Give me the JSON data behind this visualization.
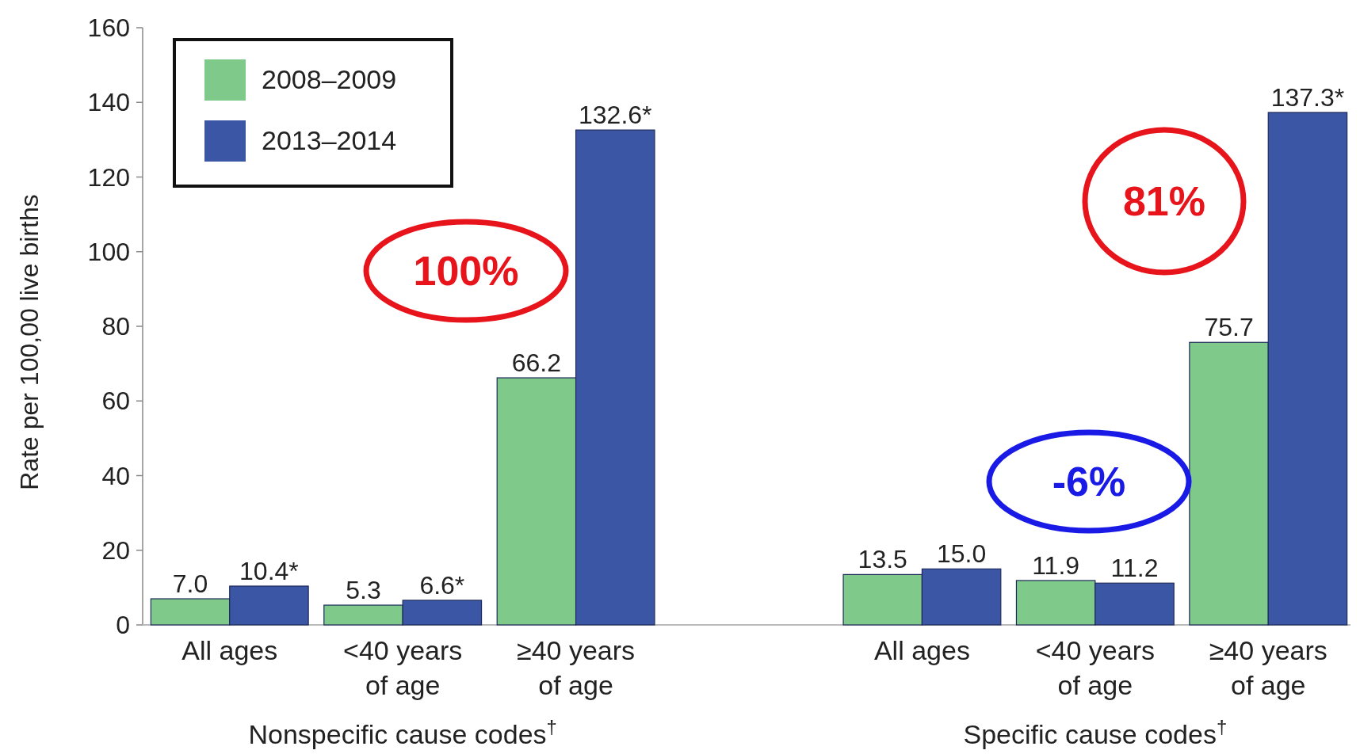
{
  "chart_data": {
    "type": "bar",
    "ylabel": "Rate per 100,00 live births",
    "categories": [
      "All ages",
      "<40 years of age",
      "≥40 years of age",
      null,
      "All ages",
      "<40 years of age",
      "≥40 years of age"
    ],
    "series": [
      {
        "name": "2008–2009",
        "color": "#7fc98a",
        "values": [
          7.0,
          5.3,
          66.2,
          null,
          13.5,
          11.9,
          75.7
        ],
        "value_labels": [
          "7.0",
          "5.3",
          "66.2",
          null,
          "13.5",
          "11.9",
          "75.7"
        ]
      },
      {
        "name": "2013–2014",
        "color": "#3c56a6",
        "values": [
          10.4,
          6.6,
          132.6,
          null,
          15.0,
          11.2,
          137.3
        ],
        "value_labels": [
          "10.4*",
          "6.6*",
          "132.6*",
          null,
          "15.0",
          "11.2",
          "137.3*"
        ]
      }
    ],
    "ylim": [
      0,
      160
    ],
    "yticks": [
      0,
      20,
      40,
      60,
      80,
      100,
      120,
      140,
      160
    ],
    "legend": "top left",
    "annotations": [
      "Nonspecific cause codes$^{†}$",
      "Specific cause codes$^{†}$",
      "100%",
      "-6%",
      "81%"
    ]
  }
}
